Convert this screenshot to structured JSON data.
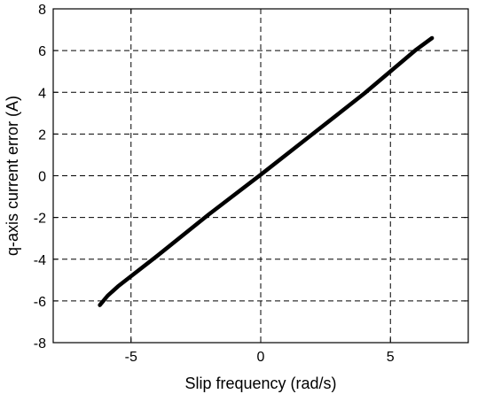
{
  "chart_data": {
    "type": "line",
    "title": "",
    "xlabel": "Slip frequency (rad/s)",
    "ylabel": "q-axis current error (A)",
    "xlim": [
      -8,
      8
    ],
    "ylim": [
      -8,
      8
    ],
    "xticks": [
      -5,
      0,
      5
    ],
    "yticks": [
      -8,
      -6,
      -4,
      -2,
      0,
      2,
      4,
      6,
      8
    ],
    "xtick_labels": [
      "-5",
      "0",
      "5"
    ],
    "ytick_labels": [
      "-8",
      "-6",
      "-4",
      "-2",
      "0",
      "2",
      "4",
      "6",
      "8"
    ],
    "grid": true,
    "grid_style": "dashed",
    "legend": "none",
    "series": [
      {
        "color": "#000000",
        "x": [
          -6.2,
          -5.9,
          -5.5,
          -4.0,
          -2.0,
          0.0,
          2.0,
          4.0,
          6.0,
          6.6
        ],
        "y": [
          -6.2,
          -5.75,
          -5.3,
          -3.85,
          -1.85,
          0.05,
          2.0,
          3.95,
          6.05,
          6.6
        ]
      }
    ]
  }
}
